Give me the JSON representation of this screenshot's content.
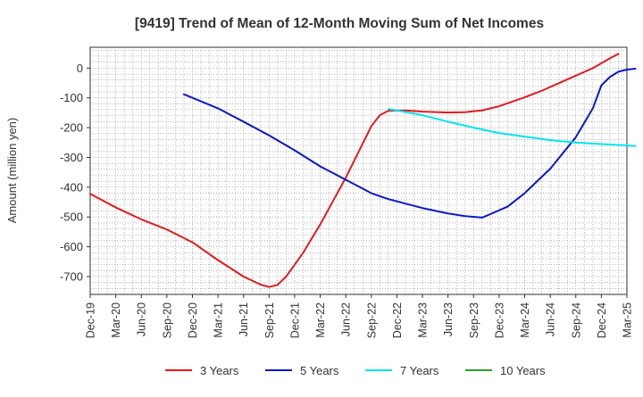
{
  "chart_data": {
    "type": "line",
    "title": "[9419]  Trend of Mean of 12-Month Moving Sum of Net Incomes",
    "ylabel": "Amount (million yen)",
    "xlabel": "",
    "ylim": [
      -760,
      70
    ],
    "yticks": [
      0,
      -100,
      -200,
      -300,
      -400,
      -500,
      -600,
      -700
    ],
    "x_tick_labels": [
      "Dec-19",
      "Mar-20",
      "Jun-20",
      "Sep-20",
      "Dec-20",
      "Mar-21",
      "Jun-21",
      "Sep-21",
      "Dec-21",
      "Mar-22",
      "Jun-22",
      "Sep-22",
      "Dec-22",
      "Mar-23",
      "Jun-23",
      "Sep-23",
      "Dec-23",
      "Mar-24",
      "Jun-24",
      "Sep-24",
      "Dec-24",
      "Mar-25"
    ],
    "grid": true,
    "legend_position": "bottom",
    "series": [
      {
        "name": "3 Years",
        "color": "#e41a1c",
        "points": [
          [
            "2019-12",
            -422
          ],
          [
            "2020-03",
            -468
          ],
          [
            "2020-06",
            -508
          ],
          [
            "2020-09",
            -542
          ],
          [
            "2020-12",
            -585
          ],
          [
            "2021-03",
            -645
          ],
          [
            "2021-06",
            -700
          ],
          [
            "2021-08",
            -727
          ],
          [
            "2021-09",
            -735
          ],
          [
            "2021-10",
            -728
          ],
          [
            "2021-11",
            -700
          ],
          [
            "2022-01",
            -620
          ],
          [
            "2022-03",
            -525
          ],
          [
            "2022-06",
            -368
          ],
          [
            "2022-09",
            -195
          ],
          [
            "2022-10",
            -158
          ],
          [
            "2022-11",
            -143
          ],
          [
            "2023-01",
            -142
          ],
          [
            "2023-03",
            -146
          ],
          [
            "2023-06",
            -149
          ],
          [
            "2023-08",
            -148
          ],
          [
            "2023-10",
            -142
          ],
          [
            "2023-12",
            -128
          ],
          [
            "2024-03",
            -98
          ],
          [
            "2024-05",
            -76
          ],
          [
            "2024-08",
            -38
          ],
          [
            "2024-11",
            0
          ],
          [
            "2025-01",
            33
          ],
          [
            "2025-02",
            48
          ]
        ]
      },
      {
        "name": "5 Years",
        "color": "#0a18c8",
        "points": [
          [
            "2020-11",
            -88
          ],
          [
            "2021-03",
            -135
          ],
          [
            "2021-06",
            -180
          ],
          [
            "2021-09",
            -226
          ],
          [
            "2021-12",
            -276
          ],
          [
            "2022-03",
            -330
          ],
          [
            "2022-06",
            -375
          ],
          [
            "2022-09",
            -420
          ],
          [
            "2022-11",
            -440
          ],
          [
            "2023-01",
            -455
          ],
          [
            "2023-03",
            -470
          ],
          [
            "2023-06",
            -488
          ],
          [
            "2023-08",
            -497
          ],
          [
            "2023-10",
            -502
          ],
          [
            "2023-11",
            -490
          ],
          [
            "2024-01",
            -465
          ],
          [
            "2024-03",
            -420
          ],
          [
            "2024-06",
            -338
          ],
          [
            "2024-09",
            -232
          ],
          [
            "2024-11",
            -135
          ],
          [
            "2024-12",
            -58
          ],
          [
            "2025-01",
            -30
          ],
          [
            "2025-02",
            -12
          ],
          [
            "2025-03",
            -5
          ],
          [
            "2025-04",
            -2
          ]
        ]
      },
      {
        "name": "7 Years",
        "color": "#00e5ee",
        "points": [
          [
            "2022-11",
            -137
          ],
          [
            "2023-03",
            -158
          ],
          [
            "2023-06",
            -180
          ],
          [
            "2023-09",
            -200
          ],
          [
            "2023-12",
            -218
          ],
          [
            "2024-03",
            -230
          ],
          [
            "2024-06",
            -242
          ],
          [
            "2024-09",
            -250
          ],
          [
            "2024-12",
            -255
          ],
          [
            "2025-02",
            -258
          ],
          [
            "2025-04",
            -262
          ]
        ]
      },
      {
        "name": "10 Years",
        "color": "#2ca02c",
        "points": []
      }
    ]
  }
}
